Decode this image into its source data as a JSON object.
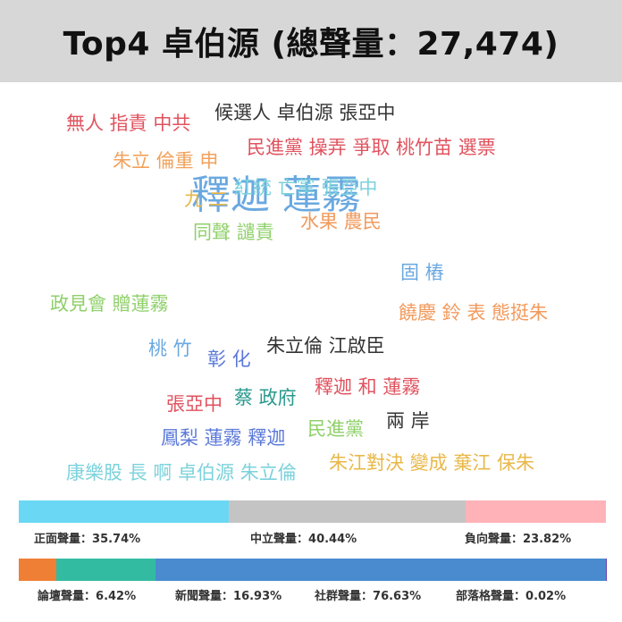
{
  "header": {
    "title": "Top4 卓伯源 (總聲量：27,474)"
  },
  "chart_data": [
    {
      "type": "wordcloud",
      "words": [
        {
          "text": "釋迦 蓮霧",
          "color": "#6aa8e0"
        },
        {
          "text": "候選人 卓伯源 張亞中",
          "color": "#333333"
        },
        {
          "text": "無人 指責 中共",
          "color": "#e0525e"
        },
        {
          "text": "民進黨 操弄 爭取 桃竹苗 選票",
          "color": "#e0525e"
        },
        {
          "text": "朱立 倫重 申",
          "color": "#f2a25c"
        },
        {
          "text": "九 二",
          "color": "#e8b84a"
        },
        {
          "text": "紅統 亡黨 張亞中",
          "color": "#7cd2dc"
        },
        {
          "text": "同聲 譴責",
          "color": "#8fd06a"
        },
        {
          "text": "水果 農民",
          "color": "#f29a5c"
        },
        {
          "text": "固 樁",
          "color": "#6aa8e0"
        },
        {
          "text": "政見會 贈蓮霧",
          "color": "#8fd06a"
        },
        {
          "text": "饒慶 鈴 表 態挺朱",
          "color": "#f29a5c"
        },
        {
          "text": "桃 竹",
          "color": "#6aa8e0"
        },
        {
          "text": "彰 化",
          "color": "#5a78d8"
        },
        {
          "text": "朱立倫 江啟臣",
          "color": "#333333"
        },
        {
          "text": "釋迦 和 蓮霧",
          "color": "#e0525e"
        },
        {
          "text": "蔡 政府",
          "color": "#2a9a8e"
        },
        {
          "text": "張亞中",
          "color": "#e0525e"
        },
        {
          "text": "民進黨",
          "color": "#8fd06a"
        },
        {
          "text": "兩 岸",
          "color": "#333333"
        },
        {
          "text": "鳳梨 蓮霧 釋迦",
          "color": "#5a78d8"
        },
        {
          "text": "朱江對決 變成 棄江 保朱",
          "color": "#e8b84a"
        },
        {
          "text": "康樂股 長 啊 卓伯源 朱立倫",
          "color": "#7cd2dc"
        }
      ]
    },
    {
      "type": "stacked-bar",
      "series": [
        {
          "name": "正面聲量",
          "value": 35.74,
          "display": "35.74%",
          "color": "#6ad8f4"
        },
        {
          "name": "中立聲量",
          "value": 40.44,
          "display": "40.44%",
          "color": "#c4c4c4"
        },
        {
          "name": "負向聲量",
          "value": 23.82,
          "display": "23.82%",
          "color": "#ffb3b8"
        }
      ]
    },
    {
      "type": "stacked-bar",
      "series": [
        {
          "name": "論壇聲量",
          "value": 6.42,
          "display": "6.42%",
          "color": "#f07f36"
        },
        {
          "name": "新聞聲量",
          "value": 16.93,
          "display": "16.93%",
          "color": "#33bba2"
        },
        {
          "name": "社群聲量",
          "value": 76.63,
          "display": "76.63%",
          "color": "#4a8bd0"
        },
        {
          "name": "部落格聲量",
          "value": 0.02,
          "display": "0.02%",
          "color": "#6a3fb0"
        }
      ]
    }
  ]
}
